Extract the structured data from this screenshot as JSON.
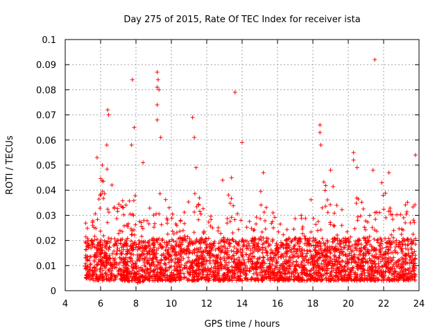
{
  "chart_data": {
    "type": "scatter",
    "title": "Day 275 of 2015, Rate Of TEC Index for receiver ista",
    "xlabel": "GPS time / hours",
    "ylabel": "ROTI / TECUs",
    "xlim": [
      4,
      24
    ],
    "ylim": [
      0,
      0.1
    ],
    "xticks": [
      4,
      6,
      8,
      10,
      12,
      14,
      16,
      18,
      20,
      22,
      24
    ],
    "xtick_labels": [
      "4",
      "6",
      "8",
      "10",
      "12",
      "14",
      "16",
      "18",
      "20",
      "22",
      "24"
    ],
    "yticks": [
      0,
      0.01,
      0.02,
      0.03,
      0.04,
      0.05,
      0.06,
      0.07,
      0.08,
      0.09,
      0.1
    ],
    "ytick_labels": [
      "0",
      "0.01",
      "0.02",
      "0.03",
      "0.04",
      "0.05",
      "0.06",
      "0.07",
      "0.08",
      "0.09",
      "0.1"
    ],
    "grid": true,
    "marker": "+",
    "color": "#ff0000",
    "series": [
      {
        "name": "ROTI",
        "notable_points": [
          {
            "x": 9.2,
            "y": 0.087
          },
          {
            "x": 9.25,
            "y": 0.084
          },
          {
            "x": 7.8,
            "y": 0.084
          },
          {
            "x": 9.2,
            "y": 0.081
          },
          {
            "x": 9.3,
            "y": 0.08
          },
          {
            "x": 13.6,
            "y": 0.079
          },
          {
            "x": 9.2,
            "y": 0.074
          },
          {
            "x": 6.4,
            "y": 0.072
          },
          {
            "x": 6.45,
            "y": 0.07
          },
          {
            "x": 11.2,
            "y": 0.069
          },
          {
            "x": 9.2,
            "y": 0.068
          },
          {
            "x": 18.4,
            "y": 0.066
          },
          {
            "x": 7.9,
            "y": 0.065
          },
          {
            "x": 18.4,
            "y": 0.063
          },
          {
            "x": 11.3,
            "y": 0.061
          },
          {
            "x": 9.4,
            "y": 0.061
          },
          {
            "x": 14.0,
            "y": 0.059
          },
          {
            "x": 18.45,
            "y": 0.058
          },
          {
            "x": 6.35,
            "y": 0.058
          },
          {
            "x": 7.75,
            "y": 0.058
          },
          {
            "x": 20.3,
            "y": 0.055
          },
          {
            "x": 23.8,
            "y": 0.054
          },
          {
            "x": 21.5,
            "y": 0.092
          },
          {
            "x": 20.3,
            "y": 0.052
          },
          {
            "x": 19.0,
            "y": 0.048
          },
          {
            "x": 21.4,
            "y": 0.048
          },
          {
            "x": 15.2,
            "y": 0.047
          },
          {
            "x": 22.3,
            "y": 0.047
          },
          {
            "x": 11.4,
            "y": 0.049
          },
          {
            "x": 8.4,
            "y": 0.051
          },
          {
            "x": 5.8,
            "y": 0.053
          },
          {
            "x": 6.1,
            "y": 0.05
          },
          {
            "x": 20.5,
            "y": 0.049
          },
          {
            "x": 13.4,
            "y": 0.045
          },
          {
            "x": 12.9,
            "y": 0.044
          },
          {
            "x": 21.9,
            "y": 0.043
          }
        ],
        "envelope": [
          {
            "x": 5.1,
            "low": 0.005,
            "high": 0.029
          },
          {
            "x": 5.5,
            "low": 0.004,
            "high": 0.026
          },
          {
            "x": 6.0,
            "low": 0.004,
            "high": 0.045
          },
          {
            "x": 6.5,
            "low": 0.004,
            "high": 0.05
          },
          {
            "x": 7.0,
            "low": 0.004,
            "high": 0.036
          },
          {
            "x": 7.5,
            "low": 0.004,
            "high": 0.037
          },
          {
            "x": 8.0,
            "low": 0.003,
            "high": 0.042
          },
          {
            "x": 8.5,
            "low": 0.004,
            "high": 0.03
          },
          {
            "x": 9.0,
            "low": 0.004,
            "high": 0.042
          },
          {
            "x": 9.5,
            "low": 0.004,
            "high": 0.04
          },
          {
            "x": 10.0,
            "low": 0.004,
            "high": 0.031
          },
          {
            "x": 10.5,
            "low": 0.004,
            "high": 0.035
          },
          {
            "x": 11.0,
            "low": 0.004,
            "high": 0.038
          },
          {
            "x": 11.5,
            "low": 0.004,
            "high": 0.042
          },
          {
            "x": 12.0,
            "low": 0.004,
            "high": 0.031
          },
          {
            "x": 12.5,
            "low": 0.004,
            "high": 0.035
          },
          {
            "x": 13.0,
            "low": 0.004,
            "high": 0.04
          },
          {
            "x": 13.5,
            "low": 0.004,
            "high": 0.036
          },
          {
            "x": 14.0,
            "low": 0.004,
            "high": 0.033
          },
          {
            "x": 14.5,
            "low": 0.004,
            "high": 0.034
          },
          {
            "x": 15.0,
            "low": 0.004,
            "high": 0.04
          },
          {
            "x": 15.5,
            "low": 0.004,
            "high": 0.036
          },
          {
            "x": 16.0,
            "low": 0.004,
            "high": 0.03
          },
          {
            "x": 16.5,
            "low": 0.004,
            "high": 0.04
          },
          {
            "x": 17.0,
            "low": 0.004,
            "high": 0.03
          },
          {
            "x": 17.5,
            "low": 0.004,
            "high": 0.032
          },
          {
            "x": 18.0,
            "low": 0.004,
            "high": 0.038
          },
          {
            "x": 18.5,
            "low": 0.004,
            "high": 0.044
          },
          {
            "x": 19.0,
            "low": 0.004,
            "high": 0.046
          },
          {
            "x": 19.5,
            "low": 0.004,
            "high": 0.036
          },
          {
            "x": 20.0,
            "low": 0.004,
            "high": 0.034
          },
          {
            "x": 20.5,
            "low": 0.004,
            "high": 0.04
          },
          {
            "x": 21.0,
            "low": 0.004,
            "high": 0.034
          },
          {
            "x": 21.5,
            "low": 0.004,
            "high": 0.032
          },
          {
            "x": 22.0,
            "low": 0.004,
            "high": 0.042
          },
          {
            "x": 22.5,
            "low": 0.004,
            "high": 0.03
          },
          {
            "x": 23.0,
            "low": 0.004,
            "high": 0.034
          },
          {
            "x": 23.5,
            "low": 0.004,
            "high": 0.036
          },
          {
            "x": 23.8,
            "low": 0.004,
            "high": 0.038
          }
        ]
      }
    ]
  }
}
